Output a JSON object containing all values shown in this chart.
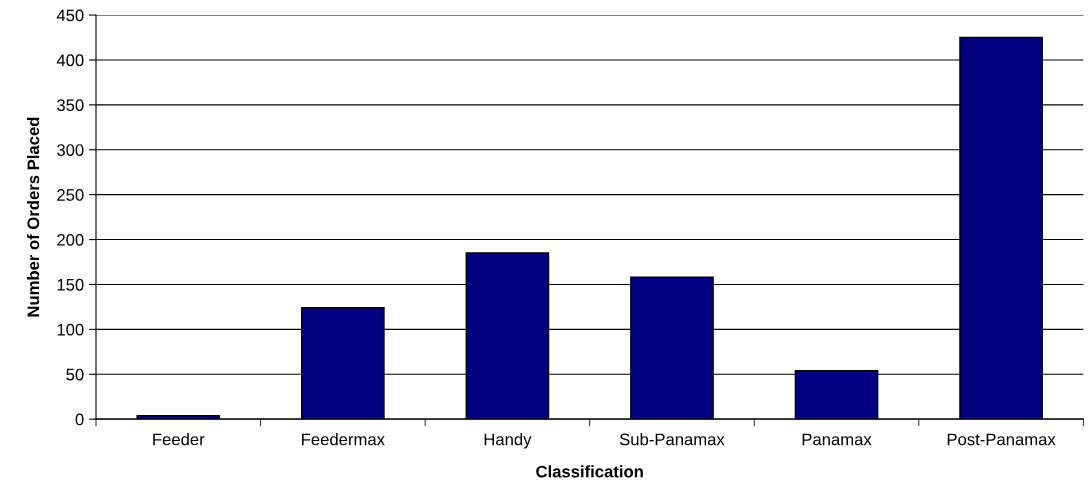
{
  "chart_data": {
    "type": "bar",
    "xlabel": "Classification",
    "ylabel": "Number of Orders Placed",
    "categories": [
      "Feeder",
      "Feedermax",
      "Handy",
      "Sub-Panamax",
      "Panamax",
      "Post-Panamax"
    ],
    "values": [
      4,
      124,
      185,
      158,
      54,
      425
    ],
    "color": "#000080",
    "ylim": [
      0,
      450
    ],
    "yticks": [
      0,
      50,
      100,
      150,
      200,
      250,
      300,
      350,
      400,
      450
    ],
    "grid": "y",
    "legend": false
  }
}
